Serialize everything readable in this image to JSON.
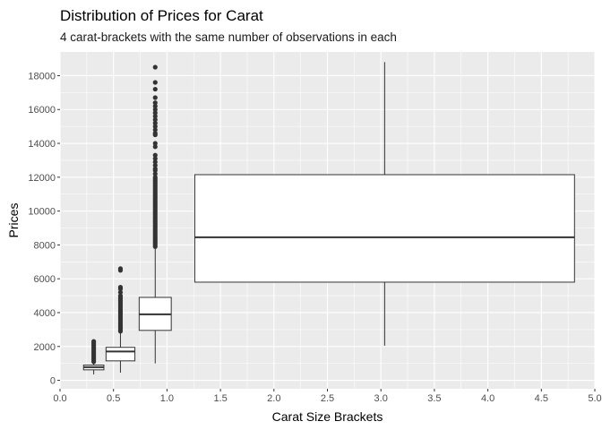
{
  "chart_data": {
    "type": "boxplot",
    "title": "Distribution of Prices for Carat",
    "subtitle": "4 carat-brackets with the same number of observations in each",
    "xlabel": "Carat Size Brackets",
    "ylabel": "Prices",
    "xlim": [
      0.0,
      5.0
    ],
    "ylim": [
      -500,
      19400
    ],
    "x_ticks": [
      "0.0",
      "0.5",
      "1.0",
      "1.5",
      "2.0",
      "2.5",
      "3.0",
      "3.5",
      "4.0",
      "4.5",
      "5.0"
    ],
    "y_ticks": [
      "0",
      "2000",
      "4000",
      "6000",
      "8000",
      "10000",
      "12000",
      "14000",
      "16000",
      "18000"
    ],
    "grid": true,
    "panel_background": "#ebebeb",
    "grid_color": "#ffffff",
    "box_fill": "#ffffff",
    "box_stroke": "#333333",
    "boxes": [
      {
        "x_left": 0.22,
        "x_right": 0.41,
        "q1": 620,
        "median": 780,
        "q3": 900,
        "whisker_low": 350,
        "whisker_high": 1050,
        "outliers": [
          1100,
          1200,
          1300,
          1400,
          1500,
          1600,
          1700,
          1800,
          1900,
          2000,
          2100,
          2200,
          2300
        ]
      },
      {
        "x_left": 0.43,
        "x_right": 0.7,
        "q1": 1150,
        "median": 1700,
        "q3": 1950,
        "whisker_low": 450,
        "whisker_high": 2800,
        "outliers": [
          2900,
          3000,
          3100,
          3200,
          3300,
          3400,
          3500,
          3600,
          3700,
          3800,
          3900,
          4000,
          4100,
          4200,
          4300,
          4400,
          4500,
          4600,
          4700,
          4800,
          4900,
          5000,
          5200,
          5400,
          5500,
          6500,
          6600
        ]
      },
      {
        "x_left": 0.74,
        "x_right": 1.04,
        "q1": 2950,
        "median": 3900,
        "q3": 4900,
        "whisker_low": 1000,
        "whisker_high": 7800,
        "outliers": [
          7900,
          8000,
          8100,
          8200,
          8300,
          8400,
          8500,
          8600,
          8700,
          8800,
          8900,
          9000,
          9100,
          9200,
          9300,
          9400,
          9500,
          9600,
          9700,
          9800,
          9900,
          10000,
          10100,
          10200,
          10300,
          10400,
          10500,
          10600,
          10700,
          10800,
          10900,
          11000,
          11100,
          11200,
          11300,
          11400,
          11500,
          11600,
          11700,
          11800,
          11900,
          12000,
          12200,
          12400,
          12500,
          12700,
          12900,
          13100,
          13300,
          13800,
          14000,
          14500,
          14600,
          14800,
          15000,
          15200,
          15400,
          15600,
          15800,
          16000,
          16200,
          16400,
          16700,
          17200,
          17600,
          18500
        ]
      },
      {
        "x_left": 1.26,
        "x_right": 4.81,
        "q1": 5800,
        "median": 8450,
        "q3": 12150,
        "whisker_low": 2050,
        "whisker_high": 18800,
        "outliers": []
      }
    ]
  }
}
